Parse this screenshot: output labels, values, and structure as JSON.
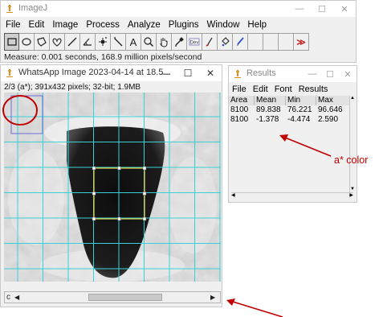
{
  "main_window": {
    "title": "ImageJ",
    "menu": [
      "File",
      "Edit",
      "Image",
      "Process",
      "Analyze",
      "Plugins",
      "Window",
      "Help"
    ],
    "tools": [
      {
        "name": "rectangle-tool",
        "active": true
      },
      {
        "name": "oval-tool"
      },
      {
        "name": "polygon-tool"
      },
      {
        "name": "freehand-tool"
      },
      {
        "name": "line-tool"
      },
      {
        "name": "angle-tool"
      },
      {
        "name": "point-tool"
      },
      {
        "name": "wand-tool"
      },
      {
        "name": "text-tool",
        "label": "A"
      },
      {
        "name": "magnifier-tool"
      },
      {
        "name": "hand-tool"
      },
      {
        "name": "color-picker-tool"
      },
      {
        "name": "developer-menu",
        "label": "Dev"
      },
      {
        "name": "brush-tool"
      },
      {
        "name": "flood-fill-tool"
      },
      {
        "name": "pencil-tool"
      },
      {
        "name": "empty-slot-1"
      },
      {
        "name": "empty-slot-2"
      },
      {
        "name": "empty-slot-3"
      },
      {
        "name": "more-tools-arrow",
        "label": "≫"
      }
    ],
    "status": "Measure: 0.001 seconds, 168.9 million pixels/second"
  },
  "image_window": {
    "title": "WhatsApp Image 2023-04-14 at 18.5...",
    "info": "2/3 (a*); 391x432 pixels; 32-bit; 1.9MB",
    "scroll_label": "c"
  },
  "results_window": {
    "title": "Results",
    "menu": [
      "File",
      "Edit",
      "Font",
      "Results"
    ],
    "columns": [
      "Area",
      "Mean",
      "Min",
      "Max"
    ],
    "rows": [
      [
        "8100",
        "89.838",
        "76.221",
        "96.646"
      ],
      [
        "8100",
        "-1.378",
        "-4.474",
        "2.590"
      ]
    ]
  },
  "annotation": {
    "label": "a* color",
    "color": "#c00000"
  },
  "colors": {
    "grid": "#39d0d8",
    "roi": "#e8d64a",
    "roi_blue": "#6b6bd8",
    "tongue": "#1a1a1a"
  }
}
